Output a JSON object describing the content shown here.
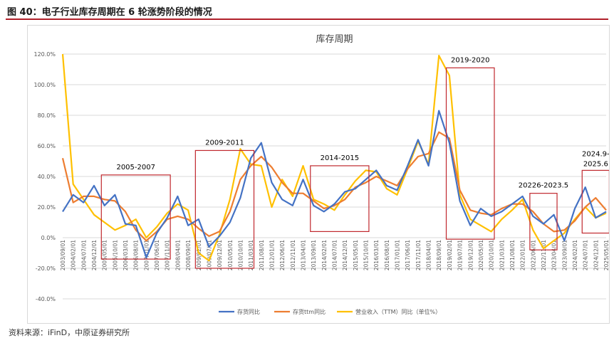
{
  "figure": {
    "title": "图 40：电子行业库存周期在 6 轮涨势阶段的情况",
    "source": "资料来源：iFinD，中原证券研究所"
  },
  "colors": {
    "title_rule": "#b0202a",
    "box": "#c0282e",
    "series": [
      "#4472c4",
      "#ed7d31",
      "#ffc000"
    ]
  },
  "chart_data": {
    "type": "line",
    "title": "库存周期",
    "ylim": [
      -40,
      120
    ],
    "y_ticks": [
      "-40.0%",
      "-20.0%",
      "0.0%",
      "20.0%",
      "40.0%",
      "60.0%",
      "80.0%",
      "100.0%",
      "120.0%"
    ],
    "grid": "horizontal",
    "legend_position": "bottom",
    "x": [
      "2003/09/01",
      "2004/02/01",
      "2004/07/01",
      "2004/12/01",
      "2005/05/01",
      "2005/10/01",
      "2006/03/01",
      "2006/08/01",
      "2007/01/01",
      "2007/06/01",
      "2007/11/01",
      "2008/04/01",
      "2008/09/01",
      "2009/02/01",
      "2009/07/01",
      "2009/12/01",
      "2010/05/01",
      "2010/10/01",
      "2011/03/01",
      "2011/08/01",
      "2012/01/01",
      "2012/06/01",
      "2012/11/01",
      "2013/04/01",
      "2013/09/01",
      "2014/02/01",
      "2014/07/01",
      "2014/12/01",
      "2015/05/01",
      "2015/10/01",
      "2016/03/01",
      "2016/08/01",
      "2017/01/01",
      "2017/06/01",
      "2017/11/01",
      "2018/04/01",
      "2018/09/01",
      "2019/02/01",
      "2019/07/01",
      "2019/12/01",
      "2020/05/01",
      "2020/10/01",
      "2021/03/01",
      "2021/08/01",
      "2022/01/01",
      "2022/06/01",
      "2022/11/01",
      "2023/04/01",
      "2023/09/01",
      "2024/02/01",
      "2024/07/01",
      "2024/12/01",
      "2025/05/01"
    ],
    "series": [
      {
        "name": "存货同比",
        "values": [
          17,
          28,
          23,
          34,
          21,
          28,
          9,
          8,
          -13,
          3,
          13,
          27,
          8,
          12,
          -6,
          1,
          10,
          26,
          52,
          62,
          36,
          25,
          21,
          38,
          21,
          17,
          22,
          30,
          32,
          38,
          44,
          34,
          31,
          47,
          64,
          47,
          83,
          62,
          24,
          8,
          19,
          14,
          17,
          22,
          27,
          14,
          9,
          15,
          -2,
          19,
          33,
          13,
          17
        ]
      },
      {
        "name": "存货ttm同比",
        "values": [
          52,
          23,
          27,
          27,
          25,
          24,
          17,
          5,
          -2,
          4,
          12,
          14,
          12,
          6,
          1,
          4,
          17,
          38,
          47,
          53,
          46,
          36,
          29,
          29,
          24,
          19,
          21,
          25,
          33,
          36,
          40,
          37,
          34,
          45,
          53,
          55,
          69,
          65,
          31,
          18,
          16,
          15,
          19,
          22,
          22,
          17,
          9,
          4,
          5,
          11,
          20,
          26,
          18
        ]
      },
      {
        "name": "营业收入（TTM）同比（单位%）",
        "values": [
          120,
          35,
          25,
          15,
          10,
          5,
          8,
          12,
          0,
          7,
          16,
          22,
          18,
          -10,
          -15,
          2,
          25,
          58,
          48,
          47,
          20,
          38,
          27,
          47,
          25,
          22,
          18,
          28,
          37,
          44,
          43,
          32,
          28,
          45,
          63,
          48,
          119,
          106,
          28,
          12,
          8,
          4,
          12,
          18,
          25,
          5,
          -7,
          -2,
          3,
          12,
          20,
          13,
          16
        ]
      }
    ]
  },
  "annotations": [
    {
      "label": "2005-2007",
      "from": "2005/05/01",
      "to": "2007/11/01",
      "y_top": 41,
      "y_bottom": -14
    },
    {
      "label": "2009-2011",
      "from": "2009/02/01",
      "to": "2011/03/01",
      "y_top": 57,
      "y_bottom": -20
    },
    {
      "label": "2014-2015",
      "from": "2013/09/01",
      "to": "2015/10/01",
      "y_top": 47,
      "y_bottom": 4
    },
    {
      "label": "2019-2020",
      "from": "2019/02/01",
      "to": "2020/10/01",
      "y_top": 111,
      "y_bottom": -1
    },
    {
      "label": "20226-2023.5",
      "from": "2022/06/01",
      "to": "2023/04/01",
      "y_top": 29,
      "y_bottom": -8
    },
    {
      "label": "2024.9-2025.6",
      "from": "2024/07/01",
      "to": "2025/05/01",
      "y_top": 44,
      "y_bottom": 3
    }
  ]
}
